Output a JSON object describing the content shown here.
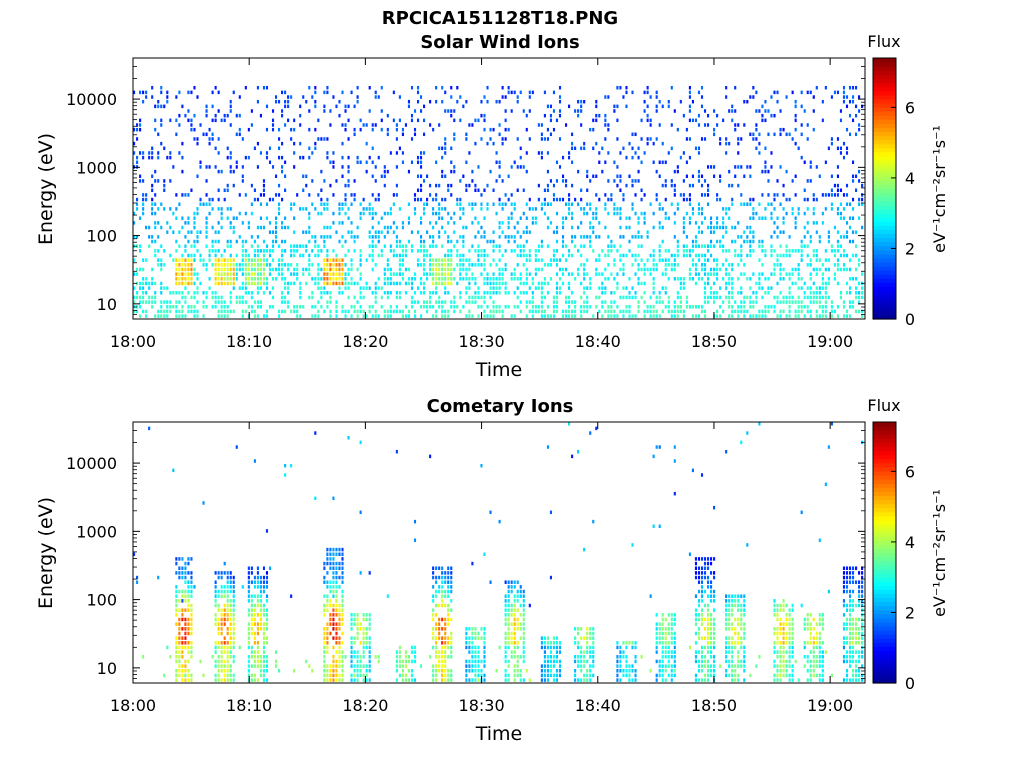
{
  "figure": {
    "title": "RPCICA151128T18.PNG"
  },
  "colors": {
    "colormap": [
      "#00008f",
      "#0000ff",
      "#0080ff",
      "#00ffff",
      "#80ff80",
      "#ffff00",
      "#ff8000",
      "#ff0000",
      "#800000"
    ],
    "axes": "#000000",
    "background": "#ffffff"
  },
  "chart_data": [
    {
      "type": "heatmap",
      "title": "Solar Wind Ions",
      "xlabel": "Time",
      "ylabel": "Energy (eV)",
      "yscale": "log",
      "ylim": [
        6,
        40000
      ],
      "xlim": [
        "18:00",
        "19:03"
      ],
      "xticks": [
        "18:00",
        "18:10",
        "18:20",
        "18:30",
        "18:40",
        "18:50",
        "19:00"
      ],
      "yticks": [
        {
          "value": 10,
          "label": "10"
        },
        {
          "value": 100,
          "label": "100"
        },
        {
          "value": 1000,
          "label": "1000"
        },
        {
          "value": 10000,
          "label": "10000"
        }
      ],
      "grid": false,
      "colorbar": {
        "title": "Flux",
        "label": "eV⁻¹cm⁻²sr⁻¹s⁻¹",
        "range": [
          0,
          7.4
        ],
        "ticks": [
          "0",
          "2",
          "4",
          "6"
        ]
      },
      "pattern": {
        "noise_color_value": [
          1.0,
          1.8
        ],
        "noise_extends_to_eV": 15000,
        "hotspots": [
          {
            "time_min": 4.3,
            "energy_eV": 30,
            "flux": 5.6
          },
          {
            "time_min": 7.8,
            "energy_eV": 30,
            "flux": 5.2
          },
          {
            "time_min": 10.5,
            "energy_eV": 30,
            "flux": 4.4
          },
          {
            "time_min": 17.2,
            "energy_eV": 30,
            "flux": 5.8
          },
          {
            "time_min": 26.5,
            "energy_eV": 30,
            "flux": 4.6
          }
        ]
      }
    },
    {
      "type": "heatmap",
      "title": "Cometary Ions",
      "xlabel": "Time",
      "ylabel": "Energy (eV)",
      "yscale": "log",
      "ylim": [
        6,
        40000
      ],
      "xlim": [
        "18:00",
        "19:03"
      ],
      "xticks": [
        "18:00",
        "18:10",
        "18:20",
        "18:30",
        "18:40",
        "18:50",
        "19:00"
      ],
      "yticks": [
        {
          "value": 10,
          "label": "10"
        },
        {
          "value": 100,
          "label": "100"
        },
        {
          "value": 1000,
          "label": "1000"
        },
        {
          "value": 10000,
          "label": "10000"
        }
      ],
      "grid": false,
      "colorbar": {
        "title": "Flux",
        "label": "eV⁻¹cm⁻²sr⁻¹s⁻¹",
        "range": [
          0,
          7.4
        ],
        "ticks": [
          "0",
          "2",
          "4",
          "6"
        ]
      },
      "pattern": {
        "bursts": [
          {
            "time_min": 4.3,
            "flux": 6.8,
            "max_eV": 400
          },
          {
            "time_min": 7.8,
            "flux": 6.2,
            "max_eV": 250
          },
          {
            "time_min": 10.6,
            "flux": 5.6,
            "max_eV": 300
          },
          {
            "time_min": 17.2,
            "flux": 7.0,
            "max_eV": 600
          },
          {
            "time_min": 19.5,
            "flux": 4.8,
            "max_eV": 60
          },
          {
            "time_min": 23.3,
            "flux": 5.5,
            "max_eV": 20
          },
          {
            "time_min": 26.5,
            "flux": 6.4,
            "max_eV": 300
          },
          {
            "time_min": 29.5,
            "flux": 4.2,
            "max_eV": 40
          },
          {
            "time_min": 32.8,
            "flux": 5.3,
            "max_eV": 200
          },
          {
            "time_min": 36.0,
            "flux": 4.0,
            "max_eV": 30
          },
          {
            "time_min": 38.8,
            "flux": 4.8,
            "max_eV": 40
          },
          {
            "time_min": 42.5,
            "flux": 4.2,
            "max_eV": 25
          },
          {
            "time_min": 45.8,
            "flux": 4.4,
            "max_eV": 60
          },
          {
            "time_min": 49.2,
            "flux": 4.9,
            "max_eV": 400
          },
          {
            "time_min": 51.8,
            "flux": 5.0,
            "max_eV": 120
          },
          {
            "time_min": 55.8,
            "flux": 5.5,
            "max_eV": 100
          },
          {
            "time_min": 58.5,
            "flux": 5.1,
            "max_eV": 60
          },
          {
            "time_min": 62.0,
            "flux": 4.5,
            "max_eV": 300
          }
        ],
        "sparse_high_energy_dots": true
      }
    }
  ]
}
